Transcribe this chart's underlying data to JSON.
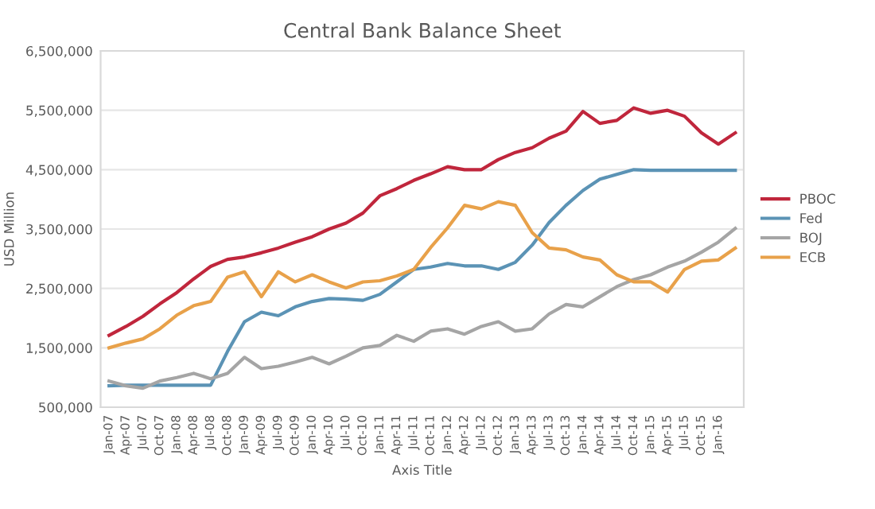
{
  "chart_data": {
    "type": "line",
    "title": "Central Bank Balance Sheet",
    "xlabel": "Axis Title",
    "ylabel": "USD Million",
    "categories": [
      "Jan-07",
      "Apr-07",
      "Jul-07",
      "Oct-07",
      "Jan-08",
      "Apr-08",
      "Jul-08",
      "Oct-08",
      "Jan-09",
      "Apr-09",
      "Jul-09",
      "Oct-09",
      "Jan-10",
      "Apr-10",
      "Jul-10",
      "Oct-10",
      "Jan-11",
      "Apr-11",
      "Jul-11",
      "Oct-11",
      "Jan-12",
      "Apr-12",
      "Jul-12",
      "Oct-12",
      "Jan-13",
      "Apr-13",
      "Jul-13",
      "Oct-13",
      "Jan-14",
      "Apr-14",
      "Jul-14",
      "Oct-14",
      "Jan-15",
      "Apr-15",
      "Jul-15",
      "Oct-15",
      "Jan-16",
      null
    ],
    "series": [
      {
        "name": "PBOC",
        "color": "#c0263c",
        "values": [
          1710000,
          1860000,
          2030000,
          2240000,
          2430000,
          2660000,
          2870000,
          2990000,
          3030000,
          3100000,
          3180000,
          3280000,
          3370000,
          3500000,
          3600000,
          3770000,
          4060000,
          4180000,
          4320000,
          4430000,
          4550000,
          4500000,
          4500000,
          4670000,
          4790000,
          4870000,
          5030000,
          5150000,
          5480000,
          5280000,
          5330000,
          5540000,
          5450000,
          5500000,
          5400000,
          5120000,
          4930000,
          5120000
        ]
      },
      {
        "name": "Fed",
        "color": "#5b93b5",
        "values": [
          860000,
          870000,
          870000,
          870000,
          870000,
          870000,
          870000,
          1440000,
          1940000,
          2100000,
          2040000,
          2190000,
          2280000,
          2330000,
          2320000,
          2300000,
          2400000,
          2610000,
          2820000,
          2860000,
          2920000,
          2880000,
          2880000,
          2820000,
          2940000,
          3230000,
          3610000,
          3900000,
          4150000,
          4340000,
          4420000,
          4500000,
          4490000,
          4490000,
          4490000,
          4490000,
          4490000,
          4490000
        ]
      },
      {
        "name": "BOJ",
        "color": "#a5a5a5",
        "values": [
          940000,
          860000,
          820000,
          940000,
          1000000,
          1070000,
          980000,
          1070000,
          1340000,
          1150000,
          1190000,
          1260000,
          1340000,
          1230000,
          1360000,
          1500000,
          1540000,
          1710000,
          1610000,
          1780000,
          1820000,
          1730000,
          1860000,
          1940000,
          1780000,
          1820000,
          2070000,
          2230000,
          2190000,
          2360000,
          2530000,
          2650000,
          2730000,
          2860000,
          2960000,
          3110000,
          3280000,
          3510000
        ]
      },
      {
        "name": "ECB",
        "color": "#e8a14a",
        "values": [
          1500000,
          1580000,
          1650000,
          1820000,
          2050000,
          2210000,
          2280000,
          2690000,
          2780000,
          2360000,
          2780000,
          2610000,
          2730000,
          2610000,
          2510000,
          2610000,
          2630000,
          2710000,
          2820000,
          3190000,
          3520000,
          3900000,
          3840000,
          3960000,
          3900000,
          3440000,
          3180000,
          3150000,
          3030000,
          2980000,
          2730000,
          2610000,
          2610000,
          2440000,
          2820000,
          2960000,
          2980000,
          3180000
        ]
      }
    ],
    "ylim": [
      500000,
      6500000
    ],
    "yticks": [
      {
        "value": 500000,
        "label": "500,000"
      },
      {
        "value": 1500000,
        "label": "1,500,000"
      },
      {
        "value": 2500000,
        "label": "2,500,000"
      },
      {
        "value": 3500000,
        "label": "3,500,000"
      },
      {
        "value": 4500000,
        "label": "4,500,000"
      },
      {
        "value": 5500000,
        "label": "5,500,000"
      },
      {
        "value": 6500000,
        "label": "6,500,000"
      }
    ],
    "grid": "y",
    "legend": "right",
    "marker": "none",
    "line_style": "solid"
  }
}
